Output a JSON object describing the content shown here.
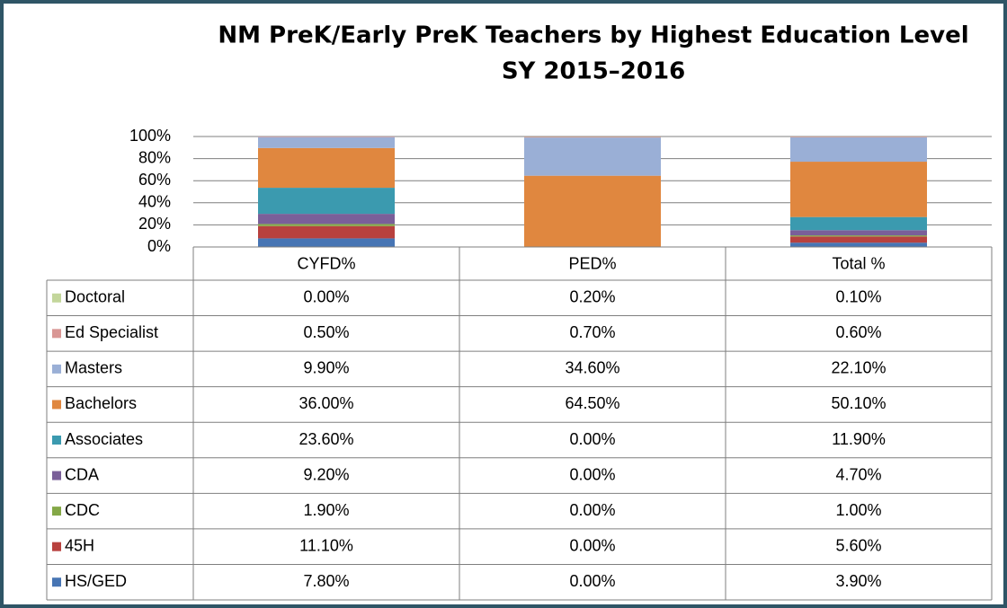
{
  "chart_data": {
    "type": "bar",
    "stacked": true,
    "title": "NM PreK/Early PreK Teachers by Highest Education Level",
    "subtitle": "SY 2015–2016",
    "categories": [
      "CYFD%",
      "PED%",
      "Total %"
    ],
    "series": [
      {
        "name": "Doctoral",
        "color": "#c3d69b",
        "values": [
          0,
          0.2,
          0.1
        ],
        "value_labels": [
          "0.00%",
          "0.20%",
          "0.10%"
        ]
      },
      {
        "name": "Ed Specialist",
        "color": "#d99694",
        "values": [
          0.5,
          0.7,
          0.6
        ],
        "value_labels": [
          "0.50%",
          "0.70%",
          "0.60%"
        ]
      },
      {
        "name": "Masters",
        "color": "#9aafd6",
        "values": [
          9.9,
          34.6,
          22.1
        ],
        "value_labels": [
          "9.90%",
          "34.60%",
          "22.10%"
        ]
      },
      {
        "name": "Bachelors",
        "color": "#e0873f",
        "values": [
          36,
          64.5,
          50.1
        ],
        "value_labels": [
          "36.00%",
          "64.50%",
          "50.10%"
        ]
      },
      {
        "name": "Associates",
        "color": "#3b9aaf",
        "values": [
          23.6,
          0,
          11.9
        ],
        "value_labels": [
          "23.60%",
          "0.00%",
          "11.90%"
        ]
      },
      {
        "name": "CDA",
        "color": "#7a5f99",
        "values": [
          9.2,
          0,
          4.7
        ],
        "value_labels": [
          "9.20%",
          "0.00%",
          "4.70%"
        ]
      },
      {
        "name": "CDC",
        "color": "#84a847",
        "values": [
          1.9,
          0,
          1
        ],
        "value_labels": [
          "1.90%",
          "0.00%",
          "1.00%"
        ]
      },
      {
        "name": "45H",
        "color": "#b8413e",
        "values": [
          11.1,
          0,
          5.6
        ],
        "value_labels": [
          "11.10%",
          "0.00%",
          "5.60%"
        ]
      },
      {
        "name": "HS/GED",
        "color": "#4775b4",
        "values": [
          7.8,
          0,
          3.9
        ],
        "value_labels": [
          "7.80%",
          "0.00%",
          "3.90%"
        ]
      }
    ],
    "ylim": [
      0,
      100
    ],
    "yticks": [
      {
        "value": 0,
        "label": "0%"
      },
      {
        "value": 20,
        "label": "20%"
      },
      {
        "value": 40,
        "label": "40%"
      },
      {
        "value": 60,
        "label": "60%"
      },
      {
        "value": 80,
        "label": "80%"
      },
      {
        "value": 100,
        "label": "100%"
      }
    ],
    "grid": true
  }
}
